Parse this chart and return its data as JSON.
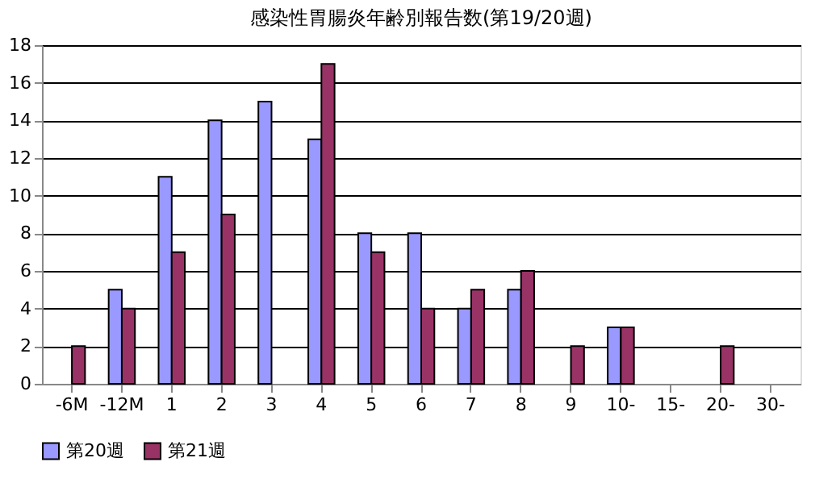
{
  "chart_data": {
    "type": "bar",
    "title": "感染性胃腸炎年齢別報告数(第19/20週)",
    "categories": [
      "-6M",
      "-12M",
      "1",
      "2",
      "3",
      "4",
      "5",
      "6",
      "7",
      "8",
      "9",
      "10-",
      "15-",
      "20-",
      "30-"
    ],
    "series": [
      {
        "name": "第20週",
        "color": "#9999ff",
        "values": [
          0,
          5,
          11,
          14,
          15,
          13,
          8,
          8,
          4,
          5,
          0,
          3,
          0,
          0,
          0
        ]
      },
      {
        "name": "第21週",
        "color": "#993366",
        "values": [
          2,
          4,
          7,
          9,
          0,
          17,
          7,
          4,
          5,
          6,
          2,
          3,
          0,
          2,
          0
        ]
      }
    ],
    "ylim": [
      0,
      18
    ],
    "yticks": [
      0,
      2,
      4,
      6,
      8,
      10,
      12,
      14,
      16,
      18
    ],
    "grid": "y",
    "legend": "bottom"
  }
}
